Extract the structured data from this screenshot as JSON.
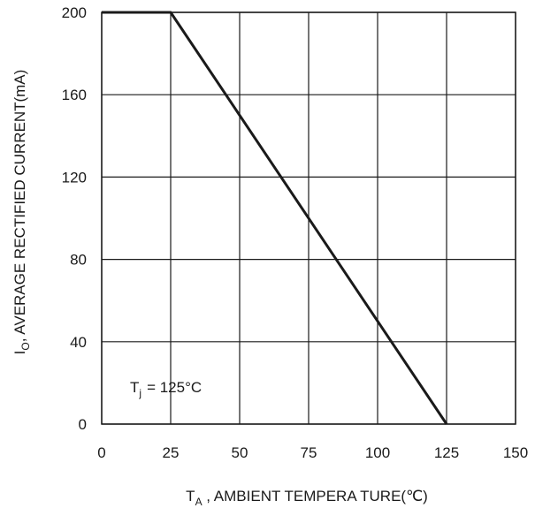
{
  "chart_data": {
    "type": "line",
    "x_axis": {
      "label_main": "T",
      "label_sub": "A",
      "label_rest": " , AMBIENT   TEMPERA  TURE(℃)",
      "range": [
        0,
        150
      ],
      "ticks": [
        "0",
        "25",
        "50",
        "75",
        "100",
        "125",
        "150"
      ]
    },
    "y_axis": {
      "label_main": "I",
      "label_sub": "O",
      "label_rest": ", AVERAGE RECTIFIED CURRENT(mA)",
      "range": [
        0,
        200
      ],
      "ticks": [
        "0",
        "40",
        "80",
        "120",
        "160",
        "200"
      ]
    },
    "grid": true,
    "series": [
      {
        "x": [
          0,
          25,
          125
        ],
        "y": [
          200,
          200,
          0
        ],
        "color": "#1a1a1a"
      }
    ],
    "annotation": {
      "main": "T",
      "sub": "j",
      "rest": "= 125°C"
    }
  }
}
